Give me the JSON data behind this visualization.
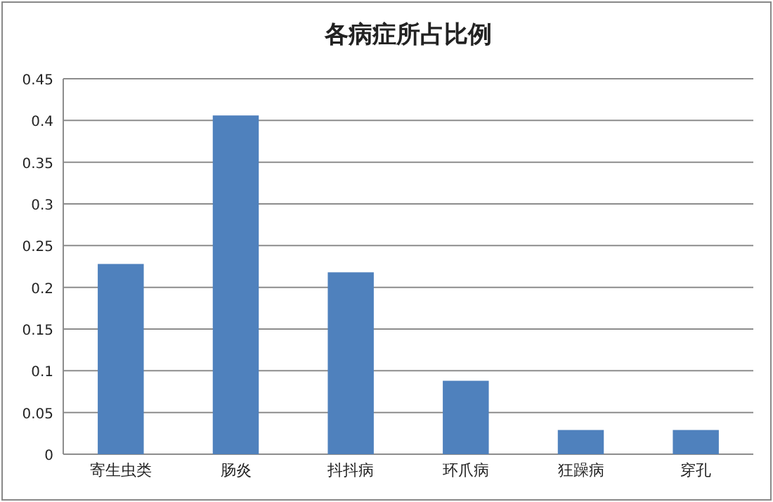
{
  "chart_data": {
    "type": "bar",
    "title": "各病症所占比例",
    "categories": [
      "寄生虫类",
      "肠炎",
      "抖抖病",
      "环爪病",
      "狂躁病",
      "穿孔"
    ],
    "values": [
      0.228,
      0.406,
      0.218,
      0.088,
      0.029,
      0.029
    ],
    "color": "#4f81bd",
    "ylim": [
      0,
      0.45
    ],
    "yticks": [
      0,
      0.05,
      0.1,
      0.15,
      0.2,
      0.25,
      0.3,
      0.35,
      0.4,
      0.45
    ],
    "grid": "y",
    "legend": false
  }
}
